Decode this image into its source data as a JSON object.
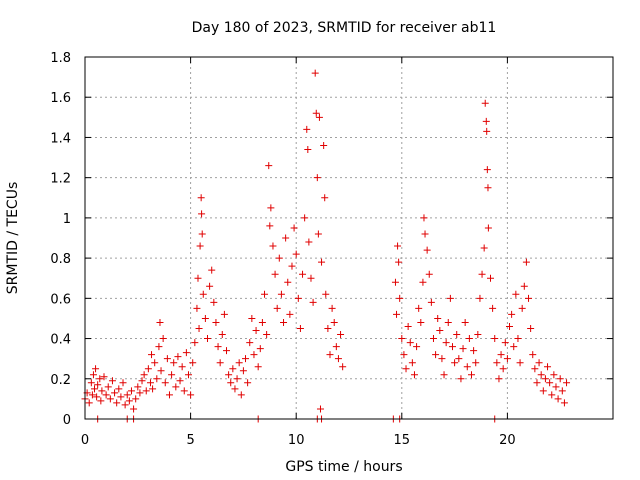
{
  "chart_data": {
    "type": "scatter",
    "title": "Day 180 of 2023, SRMTID for receiver ab11",
    "xlabel": "GPS time / hours",
    "ylabel": "SRMTID / TECUs",
    "xlim": [
      0,
      25
    ],
    "ylim": [
      0,
      1.8
    ],
    "x_ticks": [
      0,
      5,
      10,
      15,
      20
    ],
    "x_tick_labels": [
      "0",
      "5",
      "10",
      "15",
      "20"
    ],
    "y_ticks": [
      0,
      0.2,
      0.4,
      0.6,
      0.8,
      1,
      1.2,
      1.4,
      1.6,
      1.8
    ],
    "y_tick_labels": [
      "0",
      "0.2",
      "0.4",
      "0.6",
      "0.8",
      "1",
      "1.2",
      "1.4",
      "1.6",
      "1.8"
    ],
    "grid": true,
    "marker": "+",
    "marker_color": "#e00000",
    "series": [
      {
        "name": "SRMTID",
        "points": [
          [
            0.0,
            0.1
          ],
          [
            0.1,
            0.13
          ],
          [
            0.2,
            0.08
          ],
          [
            0.3,
            0.18
          ],
          [
            0.35,
            0.12
          ],
          [
            0.4,
            0.22
          ],
          [
            0.45,
            0.15
          ],
          [
            0.5,
            0.25
          ],
          [
            0.55,
            0.11
          ],
          [
            0.6,
            0.17
          ],
          [
            0.7,
            0.2
          ],
          [
            0.75,
            0.09
          ],
          [
            0.8,
            0.14
          ],
          [
            0.9,
            0.21
          ],
          [
            1.0,
            0.12
          ],
          [
            1.1,
            0.16
          ],
          [
            1.2,
            0.1
          ],
          [
            1.3,
            0.19
          ],
          [
            1.4,
            0.13
          ],
          [
            1.5,
            0.08
          ],
          [
            1.6,
            0.15
          ],
          [
            1.7,
            0.11
          ],
          [
            1.8,
            0.18
          ],
          [
            1.9,
            0.07
          ],
          [
            2.0,
            0.12
          ],
          [
            2.1,
            0.09
          ],
          [
            2.2,
            0.14
          ],
          [
            2.3,
            0.05
          ],
          [
            2.4,
            0.1
          ],
          [
            2.5,
            0.16
          ],
          [
            2.6,
            0.13
          ],
          [
            2.7,
            0.19
          ],
          [
            2.8,
            0.22
          ],
          [
            2.9,
            0.14
          ],
          [
            3.0,
            0.25
          ],
          [
            3.1,
            0.18
          ],
          [
            3.15,
            0.32
          ],
          [
            3.2,
            0.15
          ],
          [
            3.3,
            0.28
          ],
          [
            3.4,
            0.2
          ],
          [
            3.5,
            0.36
          ],
          [
            3.55,
            0.48
          ],
          [
            3.6,
            0.24
          ],
          [
            3.7,
            0.4
          ],
          [
            3.8,
            0.18
          ],
          [
            3.9,
            0.3
          ],
          [
            4.0,
            0.12
          ],
          [
            4.1,
            0.22
          ],
          [
            4.2,
            0.28
          ],
          [
            4.3,
            0.16
          ],
          [
            4.4,
            0.31
          ],
          [
            4.5,
            0.19
          ],
          [
            4.6,
            0.26
          ],
          [
            4.7,
            0.14
          ],
          [
            4.8,
            0.33
          ],
          [
            4.9,
            0.22
          ],
          [
            5.0,
            0.12
          ],
          [
            5.1,
            0.28
          ],
          [
            5.2,
            0.38
          ],
          [
            5.3,
            0.55
          ],
          [
            5.35,
            0.7
          ],
          [
            5.4,
            0.45
          ],
          [
            5.45,
            0.86
          ],
          [
            5.5,
            1.1
          ],
          [
            5.52,
            1.02
          ],
          [
            5.55,
            0.92
          ],
          [
            5.6,
            0.62
          ],
          [
            5.7,
            0.5
          ],
          [
            5.8,
            0.4
          ],
          [
            5.9,
            0.66
          ],
          [
            6.0,
            0.74
          ],
          [
            6.1,
            0.58
          ],
          [
            6.2,
            0.48
          ],
          [
            6.3,
            0.36
          ],
          [
            6.4,
            0.28
          ],
          [
            6.5,
            0.42
          ],
          [
            6.6,
            0.52
          ],
          [
            6.7,
            0.34
          ],
          [
            6.8,
            0.22
          ],
          [
            6.9,
            0.18
          ],
          [
            7.0,
            0.25
          ],
          [
            7.1,
            0.15
          ],
          [
            7.2,
            0.2
          ],
          [
            7.3,
            0.28
          ],
          [
            7.4,
            0.12
          ],
          [
            7.5,
            0.24
          ],
          [
            7.6,
            0.3
          ],
          [
            7.7,
            0.18
          ],
          [
            7.8,
            0.38
          ],
          [
            7.9,
            0.5
          ],
          [
            8.0,
            0.32
          ],
          [
            8.1,
            0.44
          ],
          [
            8.2,
            0.26
          ],
          [
            8.3,
            0.35
          ],
          [
            8.4,
            0.48
          ],
          [
            8.5,
            0.62
          ],
          [
            8.6,
            0.42
          ],
          [
            8.7,
            1.26
          ],
          [
            8.75,
            0.96
          ],
          [
            8.8,
            1.05
          ],
          [
            8.9,
            0.86
          ],
          [
            9.0,
            0.72
          ],
          [
            9.1,
            0.55
          ],
          [
            9.2,
            0.8
          ],
          [
            9.3,
            0.62
          ],
          [
            9.4,
            0.48
          ],
          [
            9.5,
            0.9
          ],
          [
            9.6,
            0.68
          ],
          [
            9.7,
            0.52
          ],
          [
            9.8,
            0.76
          ],
          [
            9.9,
            0.95
          ],
          [
            10.0,
            0.82
          ],
          [
            10.1,
            0.6
          ],
          [
            10.2,
            0.45
          ],
          [
            10.3,
            0.72
          ],
          [
            10.4,
            1.0
          ],
          [
            10.5,
            1.44
          ],
          [
            10.55,
            1.34
          ],
          [
            10.6,
            0.88
          ],
          [
            10.7,
            0.7
          ],
          [
            10.8,
            0.58
          ],
          [
            10.9,
            1.72
          ],
          [
            10.95,
            1.52
          ],
          [
            11.0,
            1.2
          ],
          [
            11.05,
            0.92
          ],
          [
            11.1,
            1.5
          ],
          [
            11.15,
            0.05
          ],
          [
            11.2,
            0.78
          ],
          [
            11.3,
            1.36
          ],
          [
            11.35,
            1.1
          ],
          [
            11.4,
            0.62
          ],
          [
            11.5,
            0.45
          ],
          [
            11.6,
            0.32
          ],
          [
            11.7,
            0.55
          ],
          [
            11.8,
            0.48
          ],
          [
            11.9,
            0.36
          ],
          [
            12.0,
            0.3
          ],
          [
            12.1,
            0.42
          ],
          [
            12.2,
            0.26
          ],
          [
            14.7,
            0.68
          ],
          [
            14.75,
            0.52
          ],
          [
            14.8,
            0.86
          ],
          [
            14.85,
            0.78
          ],
          [
            14.9,
            0.6
          ],
          [
            15.0,
            0.4
          ],
          [
            15.1,
            0.32
          ],
          [
            15.2,
            0.25
          ],
          [
            15.3,
            0.46
          ],
          [
            15.4,
            0.38
          ],
          [
            15.5,
            0.28
          ],
          [
            15.6,
            0.22
          ],
          [
            15.7,
            0.36
          ],
          [
            15.8,
            0.55
          ],
          [
            15.9,
            0.48
          ],
          [
            16.0,
            0.68
          ],
          [
            16.05,
            1.0
          ],
          [
            16.1,
            0.92
          ],
          [
            16.2,
            0.84
          ],
          [
            16.3,
            0.72
          ],
          [
            16.4,
            0.58
          ],
          [
            16.5,
            0.4
          ],
          [
            16.6,
            0.32
          ],
          [
            16.7,
            0.5
          ],
          [
            16.8,
            0.44
          ],
          [
            16.9,
            0.3
          ],
          [
            17.0,
            0.22
          ],
          [
            17.1,
            0.38
          ],
          [
            17.2,
            0.48
          ],
          [
            17.3,
            0.6
          ],
          [
            17.4,
            0.36
          ],
          [
            17.5,
            0.28
          ],
          [
            17.6,
            0.42
          ],
          [
            17.7,
            0.3
          ],
          [
            17.8,
            0.2
          ],
          [
            17.9,
            0.35
          ],
          [
            18.0,
            0.48
          ],
          [
            18.1,
            0.26
          ],
          [
            18.2,
            0.4
          ],
          [
            18.3,
            0.22
          ],
          [
            18.4,
            0.34
          ],
          [
            18.5,
            0.28
          ],
          [
            18.6,
            0.42
          ],
          [
            18.7,
            0.6
          ],
          [
            18.8,
            0.72
          ],
          [
            18.9,
            0.85
          ],
          [
            18.95,
            1.57
          ],
          [
            19.0,
            1.48
          ],
          [
            19.02,
            1.43
          ],
          [
            19.05,
            1.24
          ],
          [
            19.08,
            1.15
          ],
          [
            19.1,
            0.95
          ],
          [
            19.2,
            0.7
          ],
          [
            19.3,
            0.55
          ],
          [
            19.4,
            0.4
          ],
          [
            19.5,
            0.28
          ],
          [
            19.6,
            0.2
          ],
          [
            19.7,
            0.32
          ],
          [
            19.8,
            0.25
          ],
          [
            19.9,
            0.38
          ],
          [
            20.0,
            0.3
          ],
          [
            20.1,
            0.46
          ],
          [
            20.2,
            0.52
          ],
          [
            20.3,
            0.36
          ],
          [
            20.4,
            0.62
          ],
          [
            20.5,
            0.4
          ],
          [
            20.6,
            0.28
          ],
          [
            20.7,
            0.55
          ],
          [
            20.8,
            0.66
          ],
          [
            20.9,
            0.78
          ],
          [
            21.0,
            0.6
          ],
          [
            21.1,
            0.45
          ],
          [
            21.2,
            0.32
          ],
          [
            21.3,
            0.25
          ],
          [
            21.4,
            0.18
          ],
          [
            21.5,
            0.28
          ],
          [
            21.6,
            0.22
          ],
          [
            21.7,
            0.14
          ],
          [
            21.8,
            0.2
          ],
          [
            21.9,
            0.26
          ],
          [
            22.0,
            0.18
          ],
          [
            22.1,
            0.12
          ],
          [
            22.2,
            0.22
          ],
          [
            22.3,
            0.16
          ],
          [
            22.4,
            0.1
          ],
          [
            22.5,
            0.2
          ],
          [
            22.6,
            0.14
          ],
          [
            22.7,
            0.08
          ],
          [
            22.8,
            0.18
          ],
          [
            0.6,
            0.0
          ],
          [
            2.0,
            0.0
          ],
          [
            2.3,
            0.0
          ],
          [
            8.2,
            0.0
          ],
          [
            11.0,
            0.0
          ],
          [
            11.2,
            0.0
          ],
          [
            14.6,
            0.0
          ],
          [
            14.9,
            0.0
          ],
          [
            19.4,
            0.0
          ]
        ]
      }
    ]
  }
}
